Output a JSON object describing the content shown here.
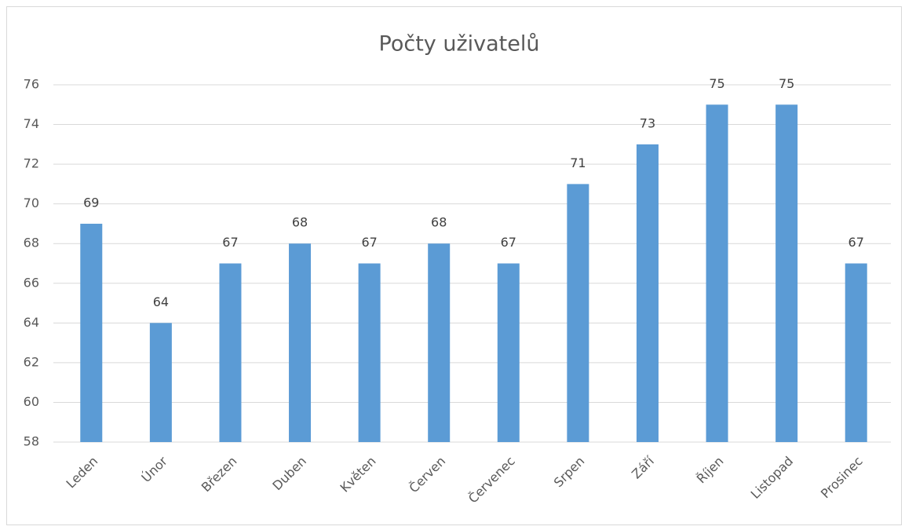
{
  "chart_data": {
    "type": "bar",
    "title": "Počty uživatelů",
    "categories": [
      "Leden",
      "Únor",
      "Březen",
      "Duben",
      "Květen",
      "Červen",
      "Červenec",
      "Srpen",
      "Září",
      "Říjen",
      "Listopad",
      "Prosinec"
    ],
    "values": [
      69,
      64,
      67,
      68,
      67,
      68,
      67,
      71,
      73,
      75,
      75,
      67
    ],
    "color": "#5b9bd5",
    "ylim": [
      58,
      76
    ],
    "yticks": [
      58,
      60,
      62,
      64,
      66,
      68,
      70,
      72,
      74,
      76
    ],
    "grid": true,
    "data_labels": true
  }
}
